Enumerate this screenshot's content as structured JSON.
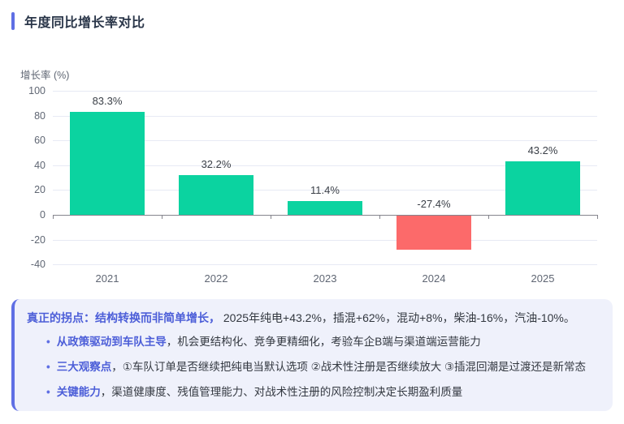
{
  "header": {
    "title": "年度同比增长率对比"
  },
  "chart_data": {
    "type": "bar",
    "title": "年度同比增长率对比",
    "xlabel": "",
    "ylabel": "增长率 (%)",
    "categories": [
      "2021",
      "2022",
      "2023",
      "2024",
      "2025"
    ],
    "values": [
      83.3,
      32.2,
      11.4,
      -27.4,
      43.2
    ],
    "labels": [
      "83.3%",
      "32.2%",
      "11.4%",
      "-27.4%",
      "43.2%"
    ],
    "ylim": [
      -40,
      100
    ],
    "yticks": [
      100,
      80,
      60,
      40,
      20,
      0,
      -20,
      -40
    ],
    "grid": true,
    "legend": "none",
    "positive_color": "#0bd3a0",
    "negative_color": "#fc6a6a"
  },
  "insight": {
    "lead_strong": "真正的拐点：结构转换而非简单增长，",
    "lead_rest": "2025年纯电+43.2%，插混+62%，混动+8%，柴油-16%，汽油-10%。",
    "bullet_icon": "•",
    "bullets": [
      {
        "strong": "从政策驱动到车队主导",
        "rest": "，机会更结构化、竞争更精细化，考验车企B端与渠道端运营能力"
      },
      {
        "strong": "三大观察点",
        "rest": "，①车队订单是否继续把纯电当默认选项 ②战术性注册是否继续放大 ③插混回潮是过渡还是新常态"
      },
      {
        "strong": "关键能力",
        "rest": "，渠道健康度、残值管理能力、对战术性注册的风险控制决定长期盈利质量"
      }
    ]
  },
  "colors": {
    "accent": "#5f6fe4",
    "accent_text": "#4c5ed8",
    "positive": "#0bd3a0",
    "negative": "#fc6a6a"
  }
}
